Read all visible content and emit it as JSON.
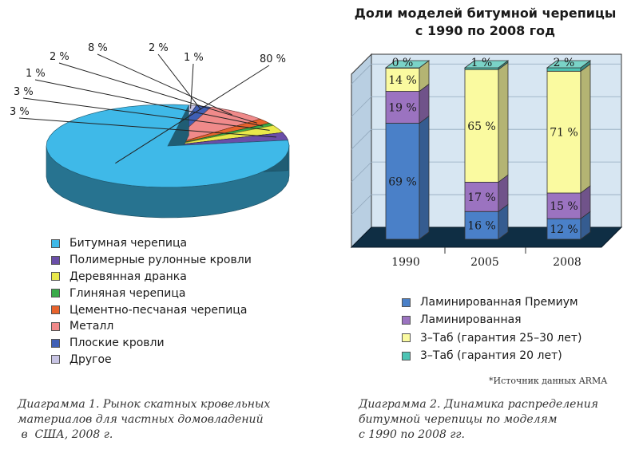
{
  "chart_data": [
    {
      "type": "pie",
      "caption": [
        "Диаграмма 1. Рынок скатных кровельных",
        "материалов для частных домовладений",
        " в  США, 2008 г."
      ],
      "series": [
        {
          "name": "Битумная черепица",
          "value": 80,
          "label": "80 %",
          "color": "#3fb9e8"
        },
        {
          "name": "Полимерные рулонные кровли",
          "value": 3,
          "label": "3 %",
          "color": "#6a4ea8"
        },
        {
          "name": "Деревянная дранка",
          "value": 3,
          "label": "3 %",
          "color": "#e9e84a"
        },
        {
          "name": "Глиняная черепица",
          "value": 1,
          "label": "1 %",
          "color": "#3aab4a"
        },
        {
          "name": "Цементно-песчаная черепица",
          "value": 2,
          "label": "2 %",
          "color": "#e8632c"
        },
        {
          "name": "Металл",
          "value": 8,
          "label": "8 %",
          "color": "#f08a8a"
        },
        {
          "name": "Плоские кровли",
          "value": 2,
          "label": "2 %",
          "color": "#3f5fb5"
        },
        {
          "name": "Другое",
          "value": 1,
          "label": "1 %",
          "color": "#c8c4e4"
        }
      ]
    },
    {
      "type": "bar",
      "stacked": true,
      "title": [
        "Доли моделей битумной черепицы",
        "с 1990 по 2008 год"
      ],
      "categories": [
        "1990",
        "2005",
        "2008"
      ],
      "series": [
        {
          "name": "Ламинированная Премиум",
          "values": [
            69,
            16,
            12
          ],
          "color": "#4a80c8"
        },
        {
          "name": "Ламинированная",
          "values": [
            19,
            17,
            15
          ],
          "color": "#9b73c0"
        },
        {
          "name": "3–Таб (гарантия 25–30 лет)",
          "values": [
            14,
            65,
            71
          ],
          "color": "#fafaa0"
        },
        {
          "name": "3–Таб (гарантия 20 лет)",
          "values": [
            0,
            1,
            2
          ],
          "color": "#4dc4b4"
        }
      ],
      "value_suffix": " %",
      "grid": true,
      "legend_position": "bottom",
      "source": "*Источник данных ARMA",
      "caption": [
        "Диаграмма 2. Динамика распределения",
        "битумной черепицы по моделям",
        "с 1990 по 2008 гг."
      ]
    }
  ]
}
